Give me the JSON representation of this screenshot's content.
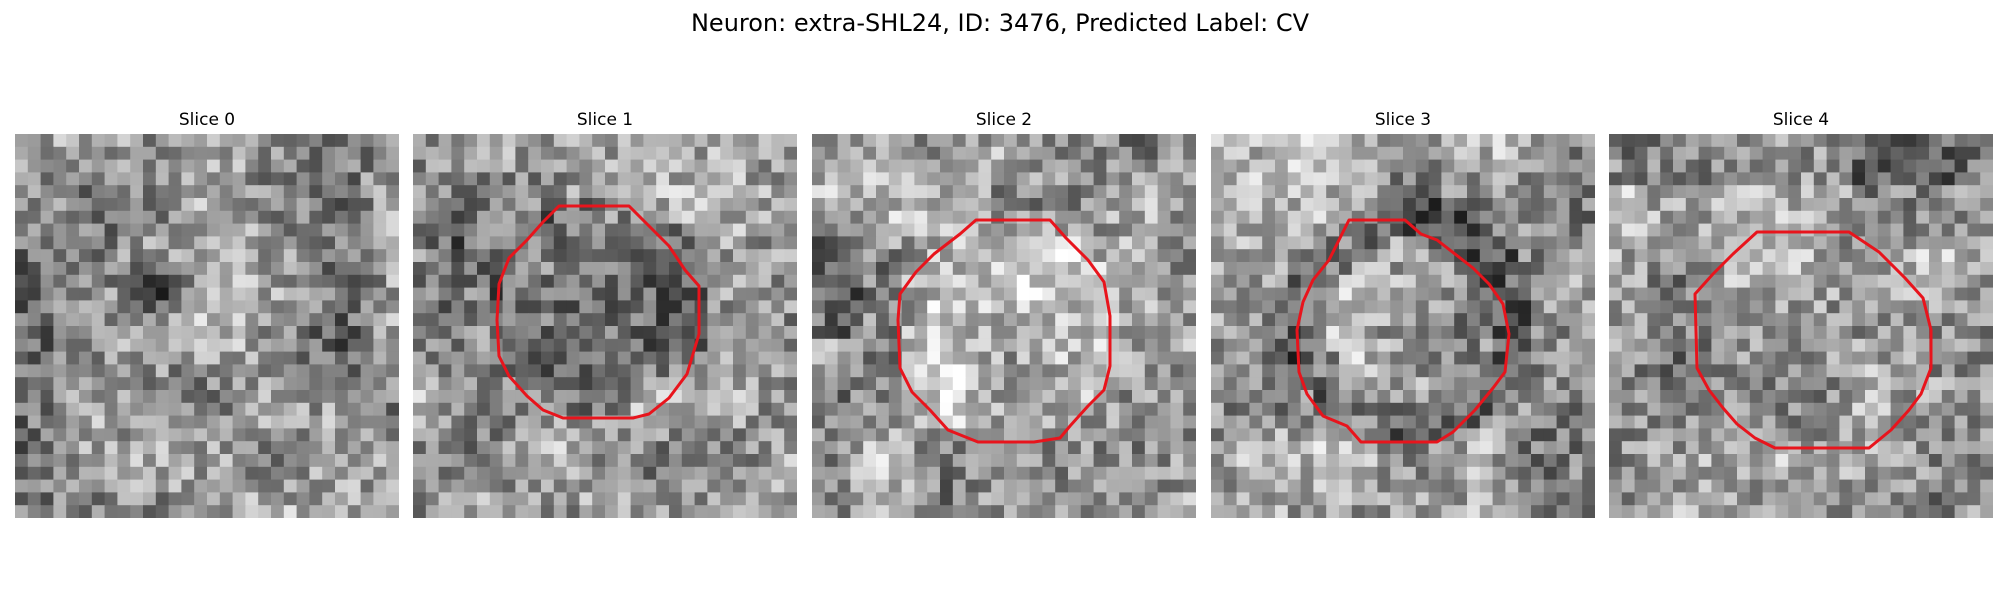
{
  "title": "Neuron: extra-SHL24, ID: 3476, Predicted Label: CV",
  "colors": {
    "contour": "#e8141c",
    "background": "#ffffff"
  },
  "panels": [
    {
      "title": "Slice 0",
      "has_contour": false,
      "pattern": "diffuse texture with dark spot upper-left"
    },
    {
      "title": "Slice 1",
      "has_contour": true,
      "pattern": "dark interior inside contour"
    },
    {
      "title": "Slice 2",
      "has_contour": true,
      "pattern": "bright interior inside contour"
    },
    {
      "title": "Slice 3",
      "has_contour": true,
      "pattern": "bright center with dark ring"
    },
    {
      "title": "Slice 4",
      "has_contour": true,
      "pattern": "mid-gray interior inside contour"
    }
  ]
}
